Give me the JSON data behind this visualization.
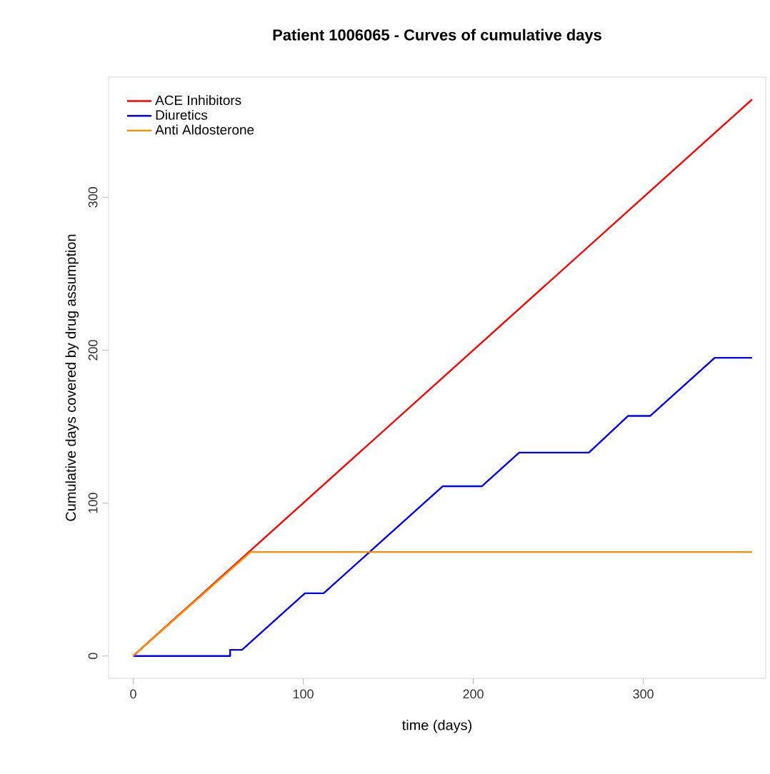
{
  "chart_data": {
    "type": "line",
    "title": "Patient 1006065 - Curves of cumulative days",
    "xlabel": "time (days)",
    "ylabel": "Cumulative days covered by drug assumption",
    "xlim": [
      -14.5,
      372
    ],
    "ylim": [
      -14.6,
      378.6
    ],
    "xticks": [
      0,
      100,
      200,
      300
    ],
    "yticks": [
      0,
      100,
      200,
      300
    ],
    "legend": "top left",
    "series": [
      {
        "name": "ACE Inhibitors",
        "color": "#ff0000",
        "x": [
          0,
          364
        ],
        "values": [
          0,
          364
        ]
      },
      {
        "name": "Diuretics",
        "color": "#0000ff",
        "x": [
          0,
          57,
          57,
          64,
          101,
          112,
          182,
          205,
          227,
          268,
          291,
          304,
          342,
          364
        ],
        "values": [
          0,
          0,
          4,
          4,
          41,
          41,
          111,
          111,
          133,
          133,
          157,
          157,
          195,
          195
        ]
      },
      {
        "name": "Anti Aldosterone",
        "color": "#ff8c00",
        "x": [
          0,
          69,
          364
        ],
        "values": [
          0,
          68,
          68
        ]
      }
    ]
  }
}
